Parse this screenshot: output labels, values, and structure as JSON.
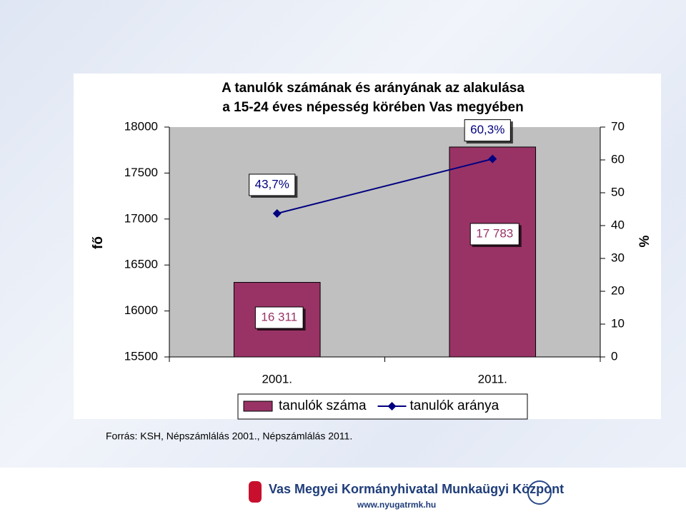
{
  "chart_data": {
    "type": "combo",
    "title": [
      "A tanulók számának és arányának az alakulása",
      "a 15-24 éves népesség körében Vas megyében"
    ],
    "ylabel": "fő",
    "y2label": "%",
    "categories": [
      "2001.",
      "2011."
    ],
    "series": [
      {
        "name": "tanulók száma",
        "type": "bar",
        "color": "#993366",
        "values": [
          16311,
          17783
        ],
        "value_labels": [
          "16 311",
          "17 783"
        ]
      },
      {
        "name": "tanulók aránya",
        "type": "line",
        "axis": "y2",
        "color": "#000080",
        "values": [
          43.7,
          60.3
        ],
        "value_labels": [
          "43,7%",
          "60,3%"
        ]
      }
    ],
    "ylim": [
      15500,
      18000
    ],
    "yticks": [
      15500,
      16000,
      16500,
      17000,
      17500,
      18000
    ],
    "y2lim": [
      0,
      70
    ],
    "y2ticks": [
      0,
      10,
      20,
      30,
      40,
      50,
      60,
      70
    ],
    "plot_background": "#c0c0c0",
    "legend": "bottom"
  },
  "source": "Forrás: KSH, Népszámlálás 2001., Népszámlálás 2011.",
  "footer": {
    "organization": "Vas Megyei Kormányhivatal Munkaügyi Központ",
    "url": "www.nyugatrmk.hu"
  }
}
